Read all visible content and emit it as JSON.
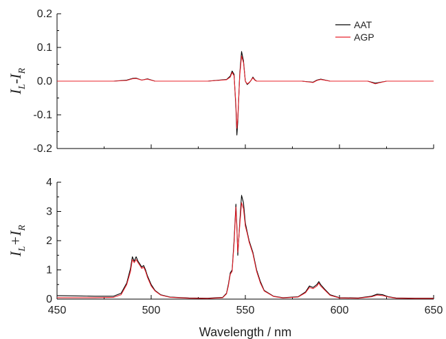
{
  "chart_data": [
    {
      "type": "line",
      "ylabel": "I_L-I_R",
      "ylabel_parts": {
        "a": "I",
        "a_sub": "L",
        "op": "-",
        "b": "I",
        "b_sub": "R"
      },
      "xlim": [
        450,
        650
      ],
      "ylim": [
        -0.2,
        0.2
      ],
      "yticks": [
        -0.2,
        -0.1,
        0.0,
        0.1,
        0.2
      ],
      "ytick_labels": [
        "-0.2",
        "-0.1",
        "0.0",
        "0.1",
        "0.2"
      ],
      "legend": {
        "placement": "top-right",
        "entries": [
          "AAT",
          "AGP"
        ]
      },
      "series": [
        {
          "name": "AAT",
          "color": "#000000",
          "x": [
            450,
            480,
            487,
            490,
            492,
            495,
            498,
            502,
            530,
            540,
            542,
            543,
            544,
            545,
            545.5,
            546,
            547,
            548,
            549,
            550,
            551,
            552,
            553,
            554,
            555,
            556,
            560,
            580,
            586,
            588,
            590,
            595,
            615,
            619,
            621,
            625,
            650
          ],
          "y": [
            0,
            0,
            0.003,
            0.008,
            0.009,
            0.003,
            0.007,
            0.0,
            0,
            0.005,
            0.015,
            0.03,
            0.02,
            -0.08,
            -0.16,
            -0.12,
            0.02,
            0.088,
            0.06,
            0.0,
            -0.01,
            -0.005,
            0.002,
            0.012,
            0.004,
            0.0,
            0,
            0,
            -0.003,
            0.003,
            0.006,
            0,
            0,
            -0.006,
            -0.004,
            0,
            0
          ]
        },
        {
          "name": "AGP",
          "color": "#e8202a",
          "x": [
            450,
            480,
            487,
            490,
            492,
            495,
            498,
            502,
            530,
            540,
            542,
            543,
            544,
            545,
            545.5,
            546,
            547,
            548,
            549,
            550,
            551,
            552,
            553,
            554,
            555,
            556,
            560,
            580,
            586,
            588,
            590,
            595,
            615,
            619,
            621,
            625,
            650
          ],
          "y": [
            0,
            0,
            0.002,
            0.007,
            0.008,
            0.003,
            0.006,
            0.0,
            0,
            0.004,
            0.012,
            0.026,
            0.016,
            -0.07,
            -0.14,
            -0.11,
            0.015,
            0.075,
            0.055,
            0.0,
            -0.008,
            -0.004,
            0.002,
            0.01,
            0.003,
            0.0,
            0,
            0,
            -0.004,
            0.002,
            0.005,
            0,
            0,
            -0.008,
            -0.005,
            0,
            0
          ]
        }
      ]
    },
    {
      "type": "line",
      "ylabel": "I_L+I_R",
      "ylabel_parts": {
        "a": "I",
        "a_sub": "L",
        "op": "+",
        "b": "I",
        "b_sub": "R"
      },
      "xlabel": "Wavelength / nm",
      "xlim": [
        450,
        650
      ],
      "ylim": [
        0,
        4
      ],
      "xticks": [
        450,
        500,
        550,
        600,
        650
      ],
      "xtick_labels": [
        "450",
        "500",
        "550",
        "600",
        "650"
      ],
      "yticks": [
        0,
        1,
        2,
        3,
        4
      ],
      "ytick_labels": [
        "0",
        "1",
        "2",
        "3",
        "4"
      ],
      "series": [
        {
          "name": "AAT",
          "color": "#000000",
          "x": [
            450,
            460,
            470,
            480,
            484,
            487,
            489,
            490,
            491,
            492,
            493,
            494,
            495,
            496,
            497,
            498,
            500,
            502,
            505,
            510,
            520,
            530,
            538,
            540,
            541,
            542,
            543,
            544,
            545,
            545.5,
            546,
            547,
            548,
            549,
            550,
            551,
            552,
            554,
            556,
            558,
            560,
            565,
            570,
            578,
            582,
            584,
            586,
            588,
            589,
            590,
            592,
            595,
            600,
            610,
            617,
            620,
            623,
            626,
            630,
            640,
            650
          ],
          "y": [
            0.12,
            0.11,
            0.1,
            0.1,
            0.2,
            0.55,
            1.05,
            1.45,
            1.3,
            1.45,
            1.3,
            1.2,
            1.1,
            1.15,
            1.0,
            0.8,
            0.5,
            0.3,
            0.15,
            0.07,
            0.04,
            0.03,
            0.06,
            0.2,
            0.5,
            0.9,
            1.0,
            2.0,
            3.25,
            2.5,
            1.5,
            2.6,
            3.55,
            3.3,
            2.6,
            2.3,
            2.0,
            1.6,
            1.0,
            0.6,
            0.3,
            0.1,
            0.05,
            0.08,
            0.25,
            0.45,
            0.4,
            0.5,
            0.6,
            0.5,
            0.35,
            0.15,
            0.05,
            0.04,
            0.1,
            0.17,
            0.15,
            0.08,
            0.04,
            0.03,
            0.03
          ]
        },
        {
          "name": "AGP",
          "color": "#e8202a",
          "x": [
            450,
            460,
            470,
            480,
            484,
            487,
            489,
            490,
            491,
            492,
            493,
            494,
            495,
            496,
            497,
            498,
            500,
            502,
            505,
            510,
            520,
            530,
            538,
            540,
            541,
            542,
            543,
            544,
            545,
            545.5,
            546,
            547,
            548,
            549,
            550,
            551,
            552,
            554,
            556,
            558,
            560,
            565,
            570,
            578,
            582,
            584,
            586,
            588,
            589,
            590,
            592,
            595,
            600,
            610,
            617,
            620,
            623,
            626,
            630,
            640,
            650
          ],
          "y": [
            0.05,
            0.05,
            0.05,
            0.06,
            0.15,
            0.5,
            0.95,
            1.35,
            1.25,
            1.35,
            1.25,
            1.15,
            1.05,
            1.1,
            0.95,
            0.75,
            0.45,
            0.28,
            0.14,
            0.06,
            0.03,
            0.02,
            0.05,
            0.18,
            0.45,
            0.85,
            0.95,
            1.9,
            3.15,
            2.4,
            1.6,
            2.5,
            3.3,
            3.1,
            2.5,
            2.25,
            1.95,
            1.55,
            0.95,
            0.55,
            0.28,
            0.09,
            0.04,
            0.07,
            0.22,
            0.4,
            0.36,
            0.45,
            0.55,
            0.45,
            0.32,
            0.13,
            0.04,
            0.03,
            0.08,
            0.14,
            0.12,
            0.07,
            0.03,
            0.02,
            0.02
          ]
        }
      ]
    }
  ]
}
